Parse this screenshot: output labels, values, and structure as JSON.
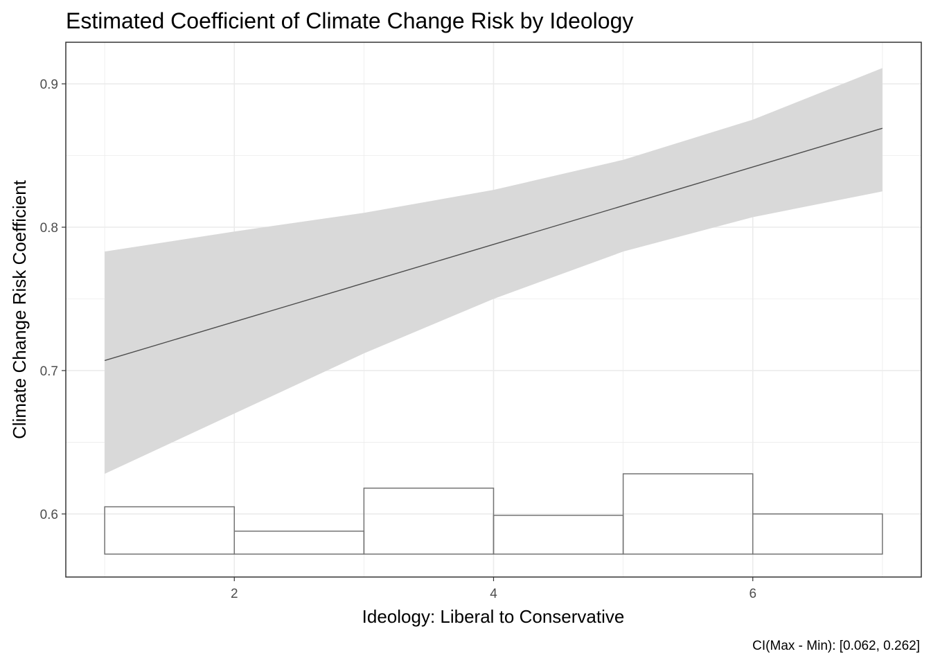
{
  "chart_data": {
    "type": "line",
    "title": "Estimated Coefficient of Climate Change Risk by Ideology",
    "xlabel": "Ideology: Liberal to Conservative",
    "ylabel": "Climate Change Risk Coefficient",
    "caption": "CI(Max - Min): [0.062, 0.262]",
    "xlim": [
      0.7,
      7.3
    ],
    "ylim": [
      0.556,
      0.929
    ],
    "x_ticks": [
      2,
      4,
      6
    ],
    "x_tick_labels": [
      "2",
      "4",
      "6"
    ],
    "y_ticks": [
      0.6,
      0.7,
      0.8,
      0.9
    ],
    "y_tick_labels": [
      "0.6",
      "0.7",
      "0.8",
      "0.9"
    ],
    "grid": true,
    "series": [
      {
        "x": [
          1,
          2,
          3,
          4,
          5,
          6,
          7
        ],
        "values": [
          0.707,
          0.734,
          0.761,
          0.788,
          0.815,
          0.842,
          0.869
        ],
        "ci_lower": [
          0.628,
          0.67,
          0.712,
          0.75,
          0.783,
          0.807,
          0.825
        ],
        "ci_upper": [
          0.783,
          0.797,
          0.81,
          0.826,
          0.847,
          0.875,
          0.911
        ]
      }
    ],
    "histogram": {
      "baseline": 0.572,
      "bins": [
        {
          "x0": 1,
          "x1": 2,
          "top": 0.605
        },
        {
          "x0": 2,
          "x1": 3,
          "top": 0.588
        },
        {
          "x0": 3,
          "x1": 4,
          "top": 0.618
        },
        {
          "x0": 4,
          "x1": 5,
          "top": 0.599
        },
        {
          "x0": 5,
          "x1": 6,
          "top": 0.628
        },
        {
          "x0": 6,
          "x1": 7,
          "top": 0.6
        }
      ]
    },
    "colors": {
      "ribbon": "#d9d9d9",
      "line": "#4d4d4d",
      "histogram_stroke": "#737373",
      "grid": "#ebebeb",
      "panel_border": "#333333"
    }
  }
}
